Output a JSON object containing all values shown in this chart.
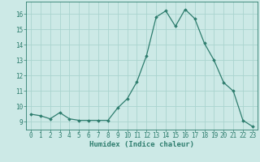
{
  "x": [
    0,
    1,
    2,
    3,
    4,
    5,
    6,
    7,
    8,
    9,
    10,
    11,
    12,
    13,
    14,
    15,
    16,
    17,
    18,
    19,
    20,
    21,
    22,
    23
  ],
  "y": [
    9.5,
    9.4,
    9.2,
    9.6,
    9.2,
    9.1,
    9.1,
    9.1,
    9.1,
    9.9,
    10.5,
    11.6,
    13.3,
    15.8,
    16.2,
    15.2,
    16.3,
    15.7,
    14.1,
    13.0,
    11.55,
    11.0,
    9.1,
    8.7
  ],
  "xlabel": "Humidex (Indice chaleur)",
  "ylim": [
    8.5,
    16.8
  ],
  "xlim": [
    -0.5,
    23.5
  ],
  "yticks": [
    9,
    10,
    11,
    12,
    13,
    14,
    15,
    16
  ],
  "xticks": [
    0,
    1,
    2,
    3,
    4,
    5,
    6,
    7,
    8,
    9,
    10,
    11,
    12,
    13,
    14,
    15,
    16,
    17,
    18,
    19,
    20,
    21,
    22,
    23
  ],
  "line_color": "#2e7d6e",
  "marker": "D",
  "marker_size": 1.8,
  "bg_color": "#cce9e6",
  "grid_color": "#aad4cf",
  "axis_color": "#2e7d6e",
  "tick_color": "#2e7d6e",
  "label_color": "#2e7d6e",
  "xlabel_fontsize": 6.5,
  "tick_fontsize": 5.5
}
